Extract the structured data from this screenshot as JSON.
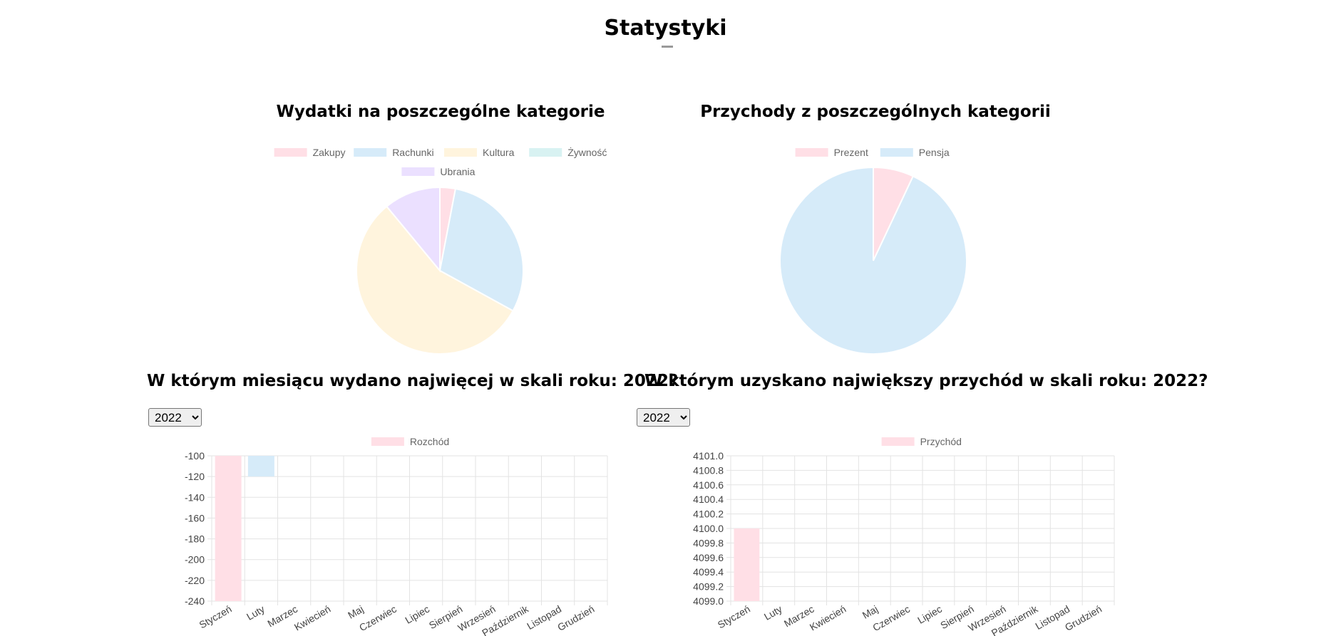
{
  "page": {
    "title": "Statystyki"
  },
  "expense_select": {
    "options": [
      "2022"
    ],
    "selected": "2022"
  },
  "income_select": {
    "options": [
      "2022"
    ],
    "selected": "2022"
  },
  "chart_data": [
    {
      "id": "expense-pie",
      "type": "pie",
      "title": "Wydatki na poszczególne kategorie",
      "legend_position": "top",
      "labels": [
        "Zakupy",
        "Rachunki",
        "Kultura",
        "Żywność",
        "Ubrania"
      ],
      "values": [
        3,
        30,
        56,
        0,
        11
      ],
      "colors": [
        "#ffdfe6",
        "#d6ebf9",
        "#fff4dd",
        "#d8f2f2",
        "#ebe0ff"
      ]
    },
    {
      "id": "income-pie",
      "type": "pie",
      "title": "Przychody z poszczególnych kategorii",
      "legend_position": "top",
      "labels": [
        "Prezent",
        "Pensja"
      ],
      "values": [
        7,
        93
      ],
      "colors": [
        "#ffdfe6",
        "#d6ebf9"
      ]
    },
    {
      "id": "expense-bar",
      "type": "bar",
      "title": "W którym miesiącu wydano najwięcej w skali roku: 2022?",
      "legend": "Rozchód",
      "categories": [
        "Styczeń",
        "Luty",
        "Marzec",
        "Kwiecień",
        "Maj",
        "Czerwiec",
        "Lipiec",
        "Sierpień",
        "Wrzesień",
        "Październik",
        "Listopad",
        "Grudzień"
      ],
      "values": [
        -240,
        -120,
        null,
        null,
        null,
        null,
        null,
        null,
        null,
        null,
        null,
        null
      ],
      "colors": [
        "#ffdfe6",
        "#d6ebf9"
      ],
      "ylim": [
        -240,
        -100
      ],
      "yticks": [
        "-100",
        "-120",
        "-140",
        "-160",
        "-180",
        "-200",
        "-220",
        "-240"
      ],
      "grid": true
    },
    {
      "id": "income-bar",
      "type": "bar",
      "title": "W którym uzyskano największy przychód w skali roku: 2022?",
      "legend": "Przychód",
      "categories": [
        "Styczeń",
        "Luty",
        "Marzec",
        "Kwiecień",
        "Maj",
        "Czerwiec",
        "Lipiec",
        "Sierpień",
        "Wrzesień",
        "Październik",
        "Listopad",
        "Grudzień"
      ],
      "values": [
        4100,
        null,
        null,
        null,
        null,
        null,
        null,
        null,
        null,
        null,
        null,
        null
      ],
      "colors": [
        "#ffdfe6"
      ],
      "ylim": [
        4099.0,
        4101.0
      ],
      "yticks": [
        "4101.0",
        "4100.8",
        "4100.6",
        "4100.4",
        "4100.2",
        "4100.0",
        "4099.8",
        "4099.6",
        "4099.4",
        "4099.2",
        "4099.0"
      ],
      "grid": true
    }
  ]
}
